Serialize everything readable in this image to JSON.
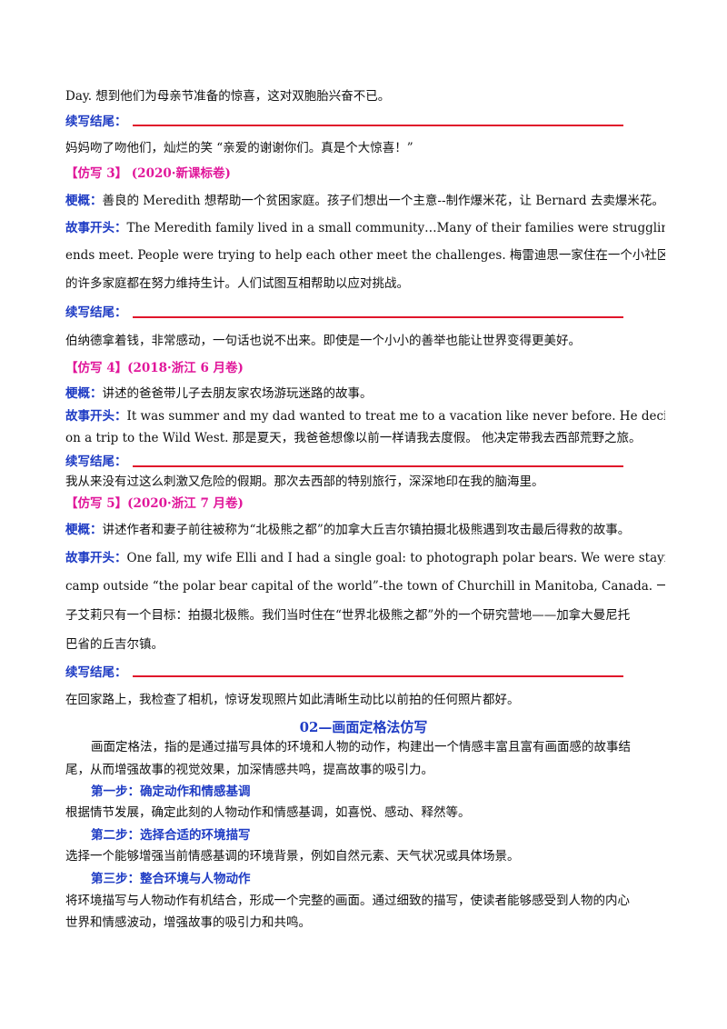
{
  "lines": {
    "l1": "Day.  想到他们为母亲节准备的惊喜，这对双胞胎兴奋不已。",
    "l2_label": "续写结尾：",
    "l3": "妈妈吻了吻他们，灿烂的笑  “亲爱的谢谢你们。真是个大惊喜！”",
    "l4_tag": "【仿写 3】  (2020·新课标卷)",
    "l5_label": "梗概：",
    "l5_text": "善良的 Meredith 想帮助一个贫困家庭。孩子们想出一个主意--制作爆米花，让 Bernard 去卖爆米花。",
    "l6_label": "故事开头：",
    "l6_text": "The Meredith family lived in a small community…Many of their families were struggling to make",
    "l7": "ends meet. People were trying to help each other meet the challenges.  梅雷迪思一家住在一个小社区里……他们",
    "l8": "的许多家庭都在努力维持生计。人们试图互相帮助以应对挑战。",
    "l9_label": "续写结尾：",
    "l10": "伯纳德拿着钱，非常感动，一句话也说不出来。即使是一个小小的善举也能让世界变得更美好。",
    "l11_tag": "【仿写 4】(2018·浙江 6 月卷)",
    "l12_label": "梗概：",
    "l12_text": "讲述的爸爸带儿子去朋友家农场游玩迷路的故事。",
    "l13_label": "故事开头：",
    "l13_text": "It was summer and my dad wanted to treat me to a vacation like never before. He decided to take me",
    "l14": "on a trip to the Wild West.  那是夏天，我爸爸想像以前一样请我去度假。  他决定带我去西部荒野之旅。",
    "l15_label": "续写结尾：",
    "l16": "我从来没有过这么刺激又危险的假期。那次去西部的特别旅行，深深地印在我的脑海里。",
    "l17_tag": "【仿写 5】(2020·浙江 7 月卷)",
    "l18_label": "梗概：",
    "l18_text": "讲述作者和妻子前往被称为“北极熊之都”的加拿大丘吉尔镇拍摄北极熊遇到攻击最后得救的故事。",
    "l19_label": "故事开头：",
    "l19_text": "One fall, my wife Elli and I had a single goal: to photograph polar bears.  We were staying at a research",
    "l20": "camp outside “the polar bear capital of the world”-the town of Churchill in Manitoba, Canada.  一年秋天，我和妻",
    "l21": "子艾莉只有一个目标：拍摄北极熊。我们当时住在“世界北极熊之都”外的一个研究营地——加拿大曼尼托",
    "l22": "巴省的丘吉尔镇。",
    "l23_label": "续写结尾：",
    "l24": "在回家路上，我检查了相机，惊讶发现照片如此清晰生动比以前拍的任何照片都好。",
    "section_title": "02—画面定格法仿写",
    "p1a": "画面定格法，指的是通过描写具体的环境和人物的动作，构建出一个情感丰富且富有画面感的故事结",
    "p1b": "尾，从而增强故事的视觉效果，加深情感共鸣，提高故事的吸引力。",
    "step1": "第一步：确定动作和情感基调",
    "step1_text": "根据情节发展，确定此刻的人物动作和情感基调，如喜悦、感动、释然等。",
    "step2": "第二步：选择合适的环境描写",
    "step2_text": "选择一个能够增强当前情感基调的环境背景，例如自然元素、天气状况或具体场景。",
    "step3": "第三步：整合环境与人物动作",
    "step3_text_a": "将环境描写与人物动作有机结合，形成一个完整的画面。通过细致的描写，使读者能够感受到人物的内心",
    "step3_text_b": "世界和情感波动，增强故事的吸引力和共鸣。"
  }
}
